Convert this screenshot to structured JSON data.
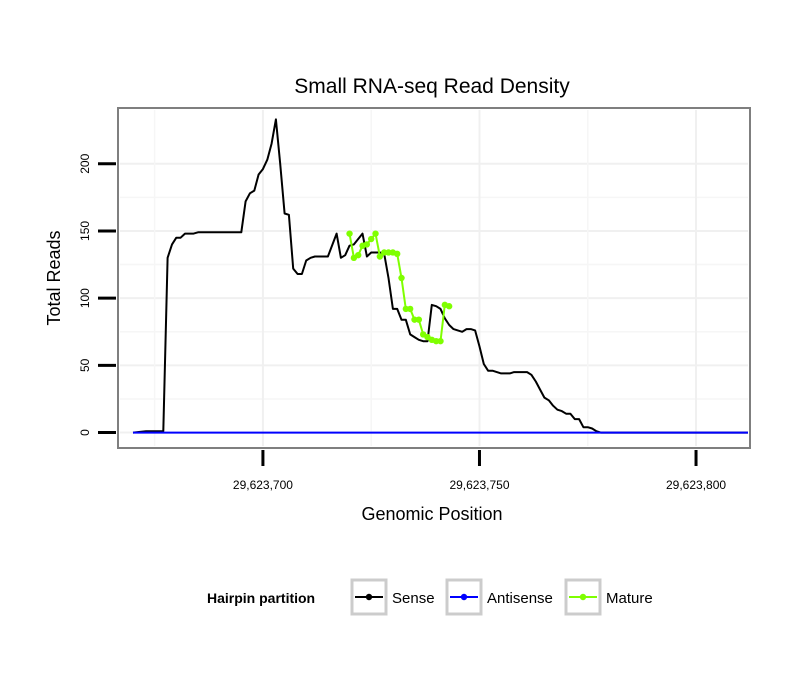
{
  "chart_data": {
    "type": "line",
    "title": "Small RNA-seq Read Density",
    "xlabel": "Genomic Position",
    "ylabel": "Total Reads",
    "xlim": [
      29623667,
      29623812
    ],
    "ylim": [
      -10,
      240
    ],
    "x_ticks": [
      29623700,
      29623750,
      29623800
    ],
    "x_tick_labels": [
      "29,623,700",
      "29,623,750",
      "29,623,800"
    ],
    "y_ticks": [
      0,
      50,
      100,
      150,
      200
    ],
    "y_tick_labels": [
      "0",
      "50",
      "100",
      "150",
      "200"
    ],
    "grid": true,
    "legend": {
      "title": "Hairpin partition",
      "position": "bottom",
      "entries": [
        {
          "label": "Sense",
          "color": "#000000"
        },
        {
          "label": "Antisense",
          "color": "#0000ff"
        },
        {
          "label": "Mature",
          "color": "#7fff00"
        }
      ]
    },
    "series": [
      {
        "name": "Sense",
        "color": "#000000",
        "x": [
          29623670,
          29623673,
          29623676,
          29623677,
          29623678,
          29623679,
          29623680,
          29623681,
          29623682,
          29623683,
          29623684,
          29623685,
          29623686,
          29623687,
          29623690,
          29623695,
          29623696,
          29623697,
          29623698,
          29623699,
          29623700,
          29623701,
          29623702,
          29623703,
          29623704,
          29623705,
          29623706,
          29623707,
          29623708,
          29623709,
          29623710,
          29623711,
          29623712,
          29623713,
          29623714,
          29623715,
          29623717,
          29623718,
          29623719,
          29623720,
          29623721,
          29623722,
          29623723,
          29623724,
          29623725,
          29623726,
          29623727,
          29623728,
          29623729,
          29623730,
          29623731,
          29623732,
          29623733,
          29623734,
          29623735,
          29623736,
          29623737,
          29623738,
          29623739,
          29623740,
          29623741,
          29623742,
          29623743,
          29623744,
          29623745,
          29623746,
          29623747,
          29623748,
          29623749,
          29623750,
          29623751,
          29623752,
          29623753,
          29623754,
          29623755,
          29623756,
          29623757,
          29623758,
          29623759,
          29623760,
          29623761,
          29623762,
          29623763,
          29623764,
          29623765,
          29623766,
          29623767,
          29623768,
          29623769,
          29623770,
          29623771,
          29623772,
          29623773,
          29623774,
          29623775,
          29623776,
          29623777,
          29623778,
          29623779,
          29623780,
          29623781,
          29623782,
          29623790,
          29623800,
          29623812
        ],
        "y": [
          0,
          1,
          1,
          1,
          130,
          140,
          145,
          145,
          148,
          148,
          148,
          149,
          149,
          149,
          149,
          149,
          172,
          178,
          180,
          192,
          196,
          203,
          215,
          233,
          200,
          163,
          162,
          122,
          118,
          118,
          128,
          130,
          131,
          131,
          131,
          131,
          148,
          130,
          132,
          139,
          140,
          144,
          148,
          131,
          134,
          134,
          134,
          133,
          115,
          92,
          92,
          84,
          84,
          73,
          71,
          69,
          68,
          68,
          95,
          94,
          92,
          85,
          80,
          77,
          76,
          75,
          77,
          77,
          76,
          64,
          51,
          46,
          46,
          45,
          44,
          44,
          44,
          45,
          45,
          45,
          45,
          43,
          38,
          32,
          26,
          24,
          20,
          17,
          16,
          14,
          14,
          10,
          10,
          4,
          4,
          3,
          1,
          0,
          0,
          0,
          0,
          0,
          0,
          0,
          0
        ]
      },
      {
        "name": "Antisense",
        "color": "#0000ff",
        "x": [
          29623670,
          29623812
        ],
        "y": [
          0,
          0
        ]
      },
      {
        "name": "Mature",
        "color": "#7fff00",
        "x": [
          29623720,
          29623721,
          29623722,
          29623723,
          29623724,
          29623725,
          29623726,
          29623727,
          29623728,
          29623729,
          29623730,
          29623731,
          29623732,
          29623733,
          29623734,
          29623735,
          29623736,
          29623737,
          29623738,
          29623739,
          29623740,
          29623741,
          29623742,
          29623743
        ],
        "y": [
          148,
          130,
          132,
          139,
          140,
          144,
          148,
          131,
          134,
          134,
          134,
          133,
          115,
          92,
          92,
          84,
          84,
          73,
          71,
          69,
          68,
          68,
          95,
          94
        ]
      }
    ]
  }
}
